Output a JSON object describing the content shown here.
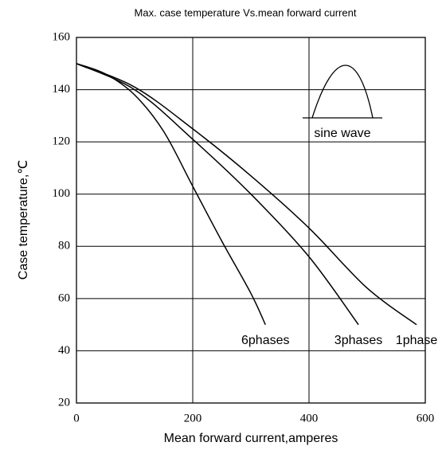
{
  "chart_data": {
    "type": "line",
    "title": "Max. case temperature  Vs.mean  forward current",
    "xlabel": "Mean forward  current,amperes",
    "ylabel": "Case temperature,℃",
    "annotation": "sine wave",
    "series": [
      {
        "name": "6phases",
        "color": "#000000",
        "x": [
          0,
          50,
          100,
          150,
          200,
          250,
          300,
          325
        ],
        "values": [
          150,
          146,
          138,
          124,
          103,
          82,
          62,
          50
        ]
      },
      {
        "name": "3phases",
        "color": "#000000",
        "x": [
          0,
          100,
          200,
          300,
          400,
          485
        ],
        "values": [
          150,
          140,
          121,
          100,
          76,
          50
        ]
      },
      {
        "name": "1phase",
        "color": "#000000",
        "x": [
          0,
          100,
          200,
          300,
          400,
          500,
          585
        ],
        "values": [
          150,
          141,
          125,
          107,
          87,
          64,
          50
        ]
      }
    ],
    "xlim": [
      0,
      600
    ],
    "xticks": [
      0,
      200,
      400,
      600
    ],
    "ylim": [
      20,
      160
    ],
    "yticks": [
      20,
      40,
      60,
      80,
      100,
      120,
      140,
      160
    ],
    "grid": true
  }
}
